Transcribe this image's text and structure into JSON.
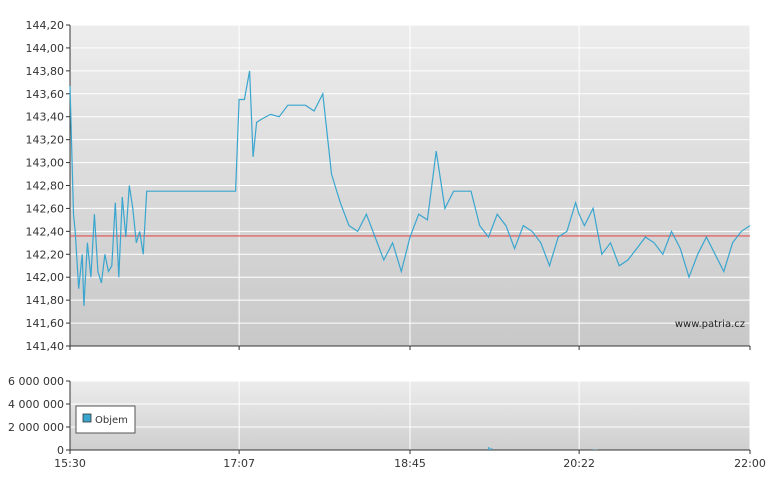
{
  "watermark": "www.patria.cz",
  "colors": {
    "line": "#3aa6cf",
    "reference": "#e05050",
    "volume": "#3aa6cf",
    "legend_swatch": "#3aa6cf"
  },
  "chart_data": [
    {
      "type": "line",
      "y_ticks": [
        "144,20",
        "144,00",
        "143,80",
        "143,60",
        "143,40",
        "143,20",
        "143,00",
        "142,80",
        "142,60",
        "142,40",
        "142,20",
        "142,00",
        "141,80",
        "141,60",
        "141,40"
      ],
      "ylim": [
        141.4,
        144.2
      ],
      "xlim": [
        "15:30",
        "22:00"
      ],
      "grid": true,
      "reference_line": 142.36,
      "series": [
        {
          "x": [
            "15:30",
            "15:32",
            "15:33",
            "15:35",
            "15:37",
            "15:38",
            "15:40",
            "15:42",
            "15:44",
            "15:46",
            "15:48",
            "15:50",
            "15:52",
            "15:54",
            "15:56",
            "15:58",
            "16:00",
            "16:02",
            "16:04",
            "16:06",
            "16:08",
            "16:10",
            "16:12",
            "16:14",
            "16:16",
            "16:18",
            "16:20",
            "16:22",
            "16:25",
            "16:30",
            "16:35",
            "16:40",
            "16:45",
            "16:50",
            "17:00",
            "17:05",
            "17:07",
            "17:10",
            "17:13",
            "17:15",
            "17:17",
            "17:20",
            "17:25",
            "17:30",
            "17:35",
            "17:40",
            "17:45",
            "17:50",
            "17:55",
            "18:00",
            "18:02",
            "18:05",
            "18:10",
            "18:15",
            "18:20",
            "18:25",
            "18:30",
            "18:35",
            "18:40",
            "18:45",
            "18:50",
            "18:55",
            "19:00",
            "19:05",
            "19:10",
            "19:15",
            "19:20",
            "19:25",
            "19:30",
            "19:35",
            "19:40",
            "19:45",
            "19:50",
            "19:55",
            "20:00",
            "20:05",
            "20:10",
            "20:15",
            "20:20",
            "20:22",
            "20:25",
            "20:30",
            "20:35",
            "20:40",
            "20:45",
            "20:50",
            "20:55",
            "21:00",
            "21:05",
            "21:10",
            "21:15",
            "21:20",
            "21:25",
            "21:30",
            "21:35",
            "21:40",
            "21:45",
            "21:50",
            "21:55",
            "22:00"
          ],
          "values": [
            143.67,
            142.55,
            142.4,
            141.9,
            142.2,
            141.75,
            142.3,
            142.0,
            142.55,
            142.05,
            141.95,
            142.2,
            142.05,
            142.1,
            142.65,
            142.0,
            142.7,
            142.35,
            142.8,
            142.6,
            142.3,
            142.4,
            142.2,
            142.75,
            142.75,
            142.75,
            142.75,
            142.75,
            142.75,
            142.75,
            142.75,
            142.75,
            142.75,
            142.75,
            142.75,
            142.75,
            143.55,
            143.55,
            143.8,
            143.05,
            143.35,
            143.38,
            143.42,
            143.4,
            143.5,
            143.5,
            143.5,
            143.45,
            143.6,
            142.9,
            142.8,
            142.65,
            142.45,
            142.4,
            142.55,
            142.35,
            142.15,
            142.3,
            142.05,
            142.35,
            142.55,
            142.5,
            143.1,
            142.6,
            142.75,
            142.75,
            142.75,
            142.45,
            142.35,
            142.55,
            142.45,
            142.25,
            142.45,
            142.4,
            142.3,
            142.1,
            142.35,
            142.4,
            142.65,
            142.55,
            142.45,
            142.6,
            142.2,
            142.3,
            142.1,
            142.15,
            142.25,
            142.35,
            142.3,
            142.2,
            142.4,
            142.25,
            142.0,
            142.2,
            142.35,
            142.2,
            142.05,
            142.3,
            142.4,
            142.45
          ]
        }
      ]
    },
    {
      "type": "bar",
      "y_ticks": [
        "6 000 000",
        "4 000 000",
        "2 000 000",
        "0"
      ],
      "ylim": [
        0,
        6000000
      ],
      "x_ticks": [
        "15:30",
        "17:07",
        "18:45",
        "20:22",
        "22:00"
      ],
      "legend": "top-left",
      "series": [
        {
          "name": "Objem",
          "x": [
            "19:30",
            "19:31",
            "19:32",
            "20:30",
            "20:31",
            "20:32"
          ],
          "values": [
            250000,
            200000,
            150000,
            60000,
            50000,
            40000
          ]
        }
      ]
    }
  ]
}
